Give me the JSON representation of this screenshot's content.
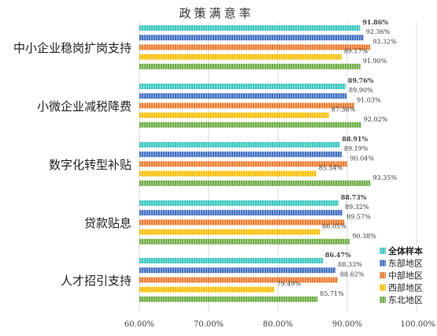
{
  "chart_data": {
    "type": "bar",
    "orientation": "horizontal",
    "title": "政策满意率",
    "categories": [
      "中小企业稳岗扩岗支持",
      "小微企业减税降费",
      "数字化转型补贴",
      "贷款贴息",
      "人才招引支持"
    ],
    "series": [
      {
        "name": "全体样本",
        "color": "#3CC8C0",
        "values": [
          91.86,
          89.76,
          88.91,
          88.73,
          86.47
        ],
        "labels": [
          "91.86%",
          "89.76%",
          "88.91%",
          "88.73%",
          "86.47%"
        ]
      },
      {
        "name": "东部地区",
        "color": "#4472C4",
        "values": [
          92.36,
          89.9,
          89.19,
          89.32,
          88.33
        ],
        "labels": [
          "92.36%",
          "89.90%",
          "89.19%",
          "89.32%",
          "88.33%"
        ]
      },
      {
        "name": "中部地区",
        "color": "#ED7D31",
        "values": [
          93.32,
          91.03,
          90.04,
          89.57,
          88.62
        ],
        "labels": [
          "93.32%",
          "91.03%",
          "90.04%",
          "89.57%",
          "88.62%"
        ]
      },
      {
        "name": "西部地区",
        "color": "#FFC000",
        "values": [
          89.17,
          87.36,
          85.54,
          86.05,
          79.49
        ],
        "labels": [
          "89.17%",
          "87.36%",
          "85.54%",
          "86.05%",
          "79.49%"
        ]
      },
      {
        "name": "东北地区",
        "color": "#70AD47",
        "values": [
          91.9,
          92.02,
          93.35,
          90.38,
          85.71
        ],
        "labels": [
          "91.90%",
          "92.02%",
          "93.35%",
          "90.38%",
          "85.71%"
        ]
      }
    ],
    "xlim": [
      60,
      100
    ],
    "xticks": [
      "60.00%",
      "70.00%",
      "80.00%",
      "90.00%",
      "100.00%"
    ],
    "xtick_values": [
      60,
      70,
      80,
      90,
      100
    ],
    "grid": "vertical",
    "legend_position": "right",
    "bar_pattern": "vertical-stripes"
  }
}
